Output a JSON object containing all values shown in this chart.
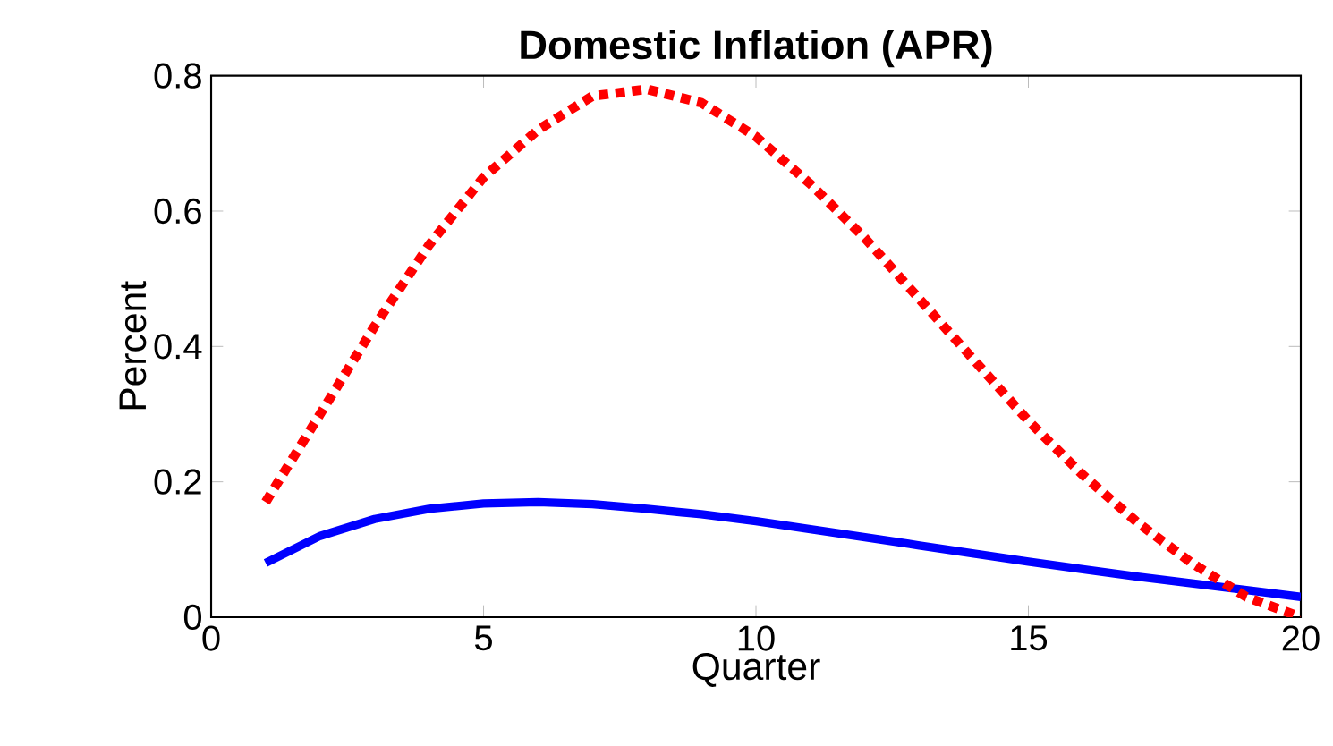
{
  "chart_data": {
    "type": "line",
    "title": "Domestic Inflation (APR)",
    "xlabel": "Quarter",
    "ylabel": "Percent",
    "xlim": [
      0,
      20
    ],
    "ylim": [
      0,
      0.8
    ],
    "xticks": [
      0,
      5,
      10,
      15,
      20
    ],
    "yticks": [
      0,
      0.2,
      0.4,
      0.6,
      0.8
    ],
    "x": [
      1,
      2,
      3,
      4,
      5,
      6,
      7,
      8,
      9,
      10,
      11,
      12,
      13,
      14,
      15,
      16,
      17,
      18,
      19,
      20
    ],
    "series": [
      {
        "color": "#0000ff",
        "line_style": "solid",
        "values": [
          0.08,
          0.12,
          0.145,
          0.16,
          0.168,
          0.17,
          0.167,
          0.16,
          0.152,
          0.142,
          0.13,
          0.118,
          0.106,
          0.094,
          0.082,
          0.071,
          0.06,
          0.05,
          0.04,
          0.03
        ]
      },
      {
        "color": "#ff0000",
        "line_style": "dotted",
        "values": [
          0.17,
          0.3,
          0.43,
          0.55,
          0.65,
          0.72,
          0.77,
          0.78,
          0.76,
          0.71,
          0.64,
          0.56,
          0.47,
          0.38,
          0.29,
          0.21,
          0.14,
          0.08,
          0.03,
          0.0
        ]
      }
    ],
    "grid": false
  }
}
